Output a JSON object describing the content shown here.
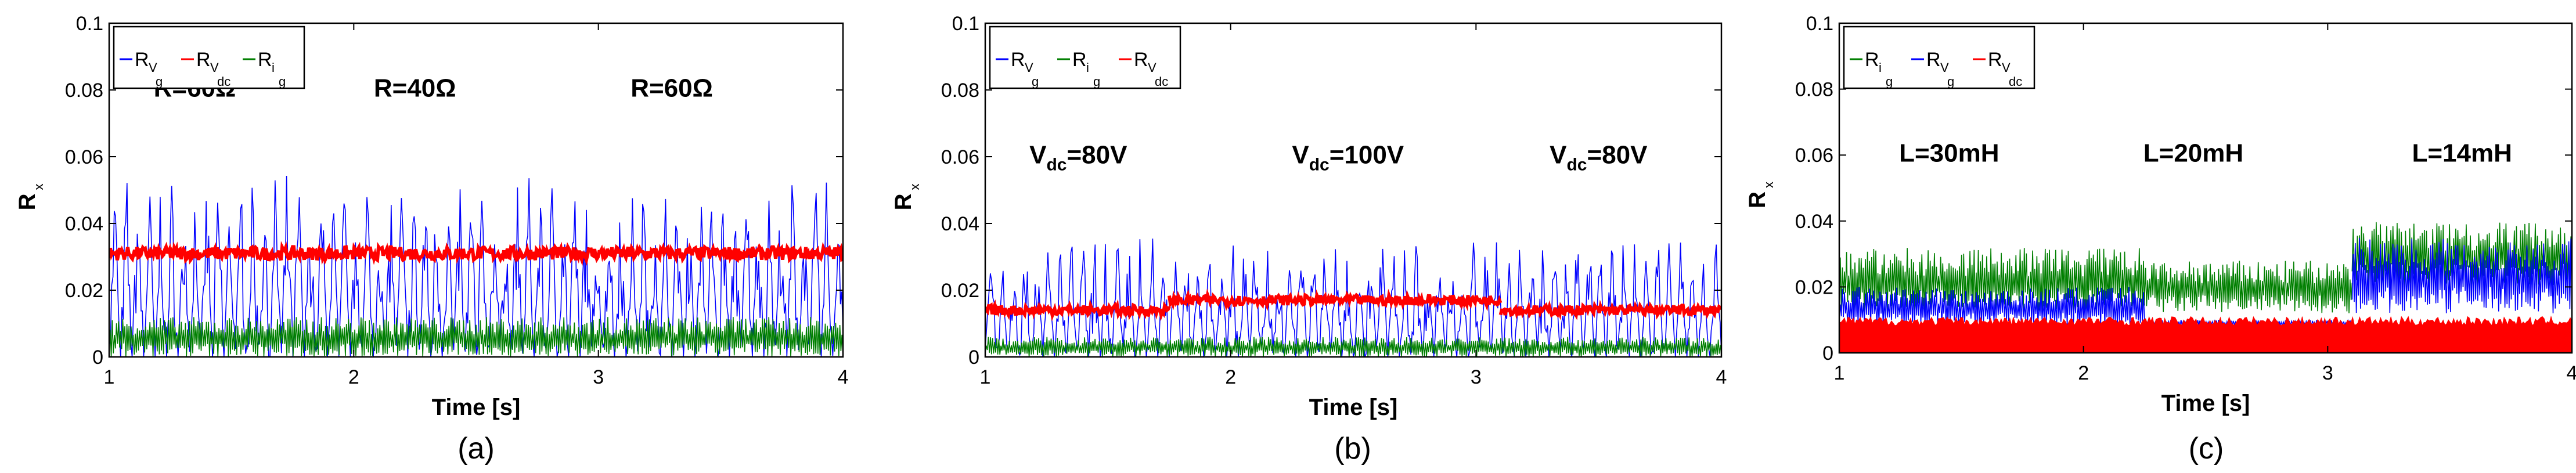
{
  "colors": {
    "blue": "#0000ff",
    "red": "#ff0000",
    "green": "#007f00",
    "green_light": "#3fa03f"
  },
  "chart_data": [
    {
      "type": "line",
      "panel_label": "(a)",
      "xlabel": "Time [s]",
      "ylabel": "R",
      "ylabel_sub": "x",
      "xlim": [
        1,
        4
      ],
      "ylim": [
        0,
        0.1
      ],
      "xticks": [
        "1",
        "2",
        "3",
        "4"
      ],
      "yticks": [
        "0",
        "0.02",
        "0.04",
        "0.06",
        "0.08",
        "0.1"
      ],
      "legend": {
        "placement": "top-left",
        "entries": [
          {
            "name": "R",
            "sub1": "V",
            "sub2": "g",
            "color": "blue"
          },
          {
            "name": "R",
            "sub1": "V",
            "sub2": "dc",
            "color": "red"
          },
          {
            "name": "R",
            "sub1": "i",
            "sub2": "g",
            "color": "green"
          }
        ]
      },
      "annotations": [
        {
          "text": "R=60Ω",
          "x": 1.35,
          "y": 0.078
        },
        {
          "text": "R=40Ω",
          "x": 2.25,
          "y": 0.078
        },
        {
          "text": "R=60Ω",
          "x": 3.3,
          "y": 0.078
        }
      ],
      "series": [
        {
          "name": "R_Vg",
          "color": "blue",
          "kind": "oscillation",
          "segments": [
            {
              "x0": 1,
              "x1": 4,
              "base": 0.0,
              "peak": 0.058,
              "period": 0.02
            }
          ]
        },
        {
          "name": "R_Vdc",
          "color": "red",
          "kind": "band",
          "segments": [
            {
              "x0": 1,
              "x1": 4,
              "center": 0.031,
              "width": 0.004
            }
          ]
        },
        {
          "name": "R_ig",
          "color": "green",
          "kind": "noise",
          "segments": [
            {
              "x0": 1,
              "x1": 4,
              "base": 0.0,
              "peak": 0.012
            }
          ]
        }
      ]
    },
    {
      "type": "line",
      "panel_label": "(b)",
      "xlabel": "Time [s]",
      "ylabel": "R",
      "ylabel_sub": "x",
      "xlim": [
        1,
        4
      ],
      "ylim": [
        0,
        0.1
      ],
      "xticks": [
        "1",
        "2",
        "3",
        "4"
      ],
      "yticks": [
        "0",
        "0.02",
        "0.04",
        "0.06",
        "0.08",
        "0.1"
      ],
      "legend": {
        "placement": "top-left",
        "entries": [
          {
            "name": "R",
            "sub1": "V",
            "sub2": "g",
            "color": "blue"
          },
          {
            "name": "R",
            "sub1": "i",
            "sub2": "g",
            "color": "green"
          },
          {
            "name": "R",
            "sub1": "V",
            "sub2": "dc",
            "color": "red"
          }
        ]
      },
      "annotations": [
        {
          "text": "V",
          "sub": "dc",
          "rest": "=80V",
          "x": 1.18,
          "y": 0.058
        },
        {
          "text": "V",
          "sub": "dc",
          "rest": "=100V",
          "x": 2.25,
          "y": 0.058
        },
        {
          "text": "V",
          "sub": "dc",
          "rest": "=80V",
          "x": 3.3,
          "y": 0.058
        }
      ],
      "series": [
        {
          "name": "R_Vg",
          "color": "blue",
          "kind": "oscillation",
          "segments": [
            {
              "x0": 1,
              "x1": 4,
              "base": 0.0,
              "peak": 0.04,
              "period": 0.02
            }
          ]
        },
        {
          "name": "R_Vdc",
          "color": "red",
          "kind": "band",
          "segments": [
            {
              "x0": 1,
              "x1": 1.75,
              "center": 0.014,
              "width": 0.003
            },
            {
              "x0": 1.75,
              "x1": 3.1,
              "center": 0.017,
              "width": 0.003
            },
            {
              "x0": 3.1,
              "x1": 4,
              "center": 0.014,
              "width": 0.003
            }
          ]
        },
        {
          "name": "R_ig",
          "color": "green",
          "kind": "noise",
          "segments": [
            {
              "x0": 1,
              "x1": 4,
              "base": 0.0,
              "peak": 0.006
            }
          ]
        }
      ]
    },
    {
      "type": "line",
      "panel_label": "(c)",
      "xlabel": "Time [s]",
      "ylabel": "R",
      "ylabel_sub": "x",
      "xlim": [
        1,
        4
      ],
      "ylim": [
        0,
        0.1
      ],
      "xticks": [
        "1",
        "2",
        "3",
        "4"
      ],
      "yticks": [
        "0",
        "0.02",
        "0.04",
        "0.06",
        "0.08",
        "0.1"
      ],
      "legend": {
        "placement": "top-left",
        "entries": [
          {
            "name": "R",
            "sub1": "i",
            "sub2": "g",
            "color": "green"
          },
          {
            "name": "R",
            "sub1": "V",
            "sub2": "g",
            "color": "blue"
          },
          {
            "name": "R",
            "sub1": "V",
            "sub2": "dc",
            "color": "red"
          }
        ]
      },
      "annotations": [
        {
          "text": "L=30mH",
          "x": 1.45,
          "y": 0.058
        },
        {
          "text": "L=20mH",
          "x": 2.45,
          "y": 0.058
        },
        {
          "text": "L=14mH",
          "x": 3.55,
          "y": 0.058
        }
      ],
      "series": [
        {
          "name": "R_ig",
          "color": "green",
          "kind": "noise",
          "segments": [
            {
              "x0": 1,
              "x1": 2.25,
              "base": 0.012,
              "peak": 0.032
            },
            {
              "x0": 2.25,
              "x1": 3.1,
              "base": 0.012,
              "peak": 0.028
            },
            {
              "x0": 3.1,
              "x1": 4,
              "base": 0.02,
              "peak": 0.04
            }
          ]
        },
        {
          "name": "R_Vg",
          "color": "blue",
          "kind": "noise",
          "segments": [
            {
              "x0": 1,
              "x1": 2.25,
              "base": 0.008,
              "peak": 0.02
            },
            {
              "x0": 2.25,
              "x1": 3.1,
              "base": 0.008,
              "peak": 0.01
            },
            {
              "x0": 3.1,
              "x1": 4,
              "base": 0.012,
              "peak": 0.035
            }
          ]
        },
        {
          "name": "R_Vdc",
          "color": "red",
          "kind": "fill",
          "segments": [
            {
              "x0": 1,
              "x1": 4,
              "base": 0.0,
              "peak": 0.011
            }
          ]
        }
      ]
    }
  ]
}
